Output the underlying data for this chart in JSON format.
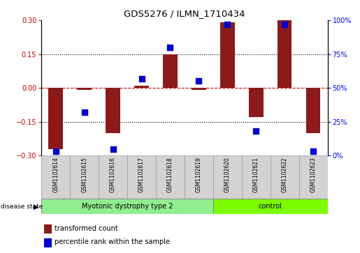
{
  "title": "GDS5276 / ILMN_1710434",
  "samples": [
    "GSM1102614",
    "GSM1102615",
    "GSM1102616",
    "GSM1102617",
    "GSM1102618",
    "GSM1102619",
    "GSM1102620",
    "GSM1102621",
    "GSM1102622",
    "GSM1102623"
  ],
  "transformed_count": [
    -0.27,
    -0.01,
    -0.2,
    0.01,
    0.15,
    -0.01,
    0.29,
    -0.13,
    0.3,
    -0.2
  ],
  "percentile_rank": [
    3,
    32,
    5,
    57,
    80,
    55,
    97,
    18,
    97,
    3
  ],
  "bar_color": "#8B1A1A",
  "dot_color": "#0000CC",
  "ylim_left": [
    -0.3,
    0.3
  ],
  "ylim_right": [
    0,
    100
  ],
  "yticks_left": [
    -0.3,
    -0.15,
    0,
    0.15,
    0.3
  ],
  "yticks_right": [
    0,
    25,
    50,
    75,
    100
  ],
  "hline_dotted": [
    -0.15,
    0.15
  ],
  "hline_dashed": [
    0
  ],
  "sample_box_color": "#D3D3D3",
  "myo_color": "#90EE90",
  "ctrl_color": "#7CFC00",
  "myo_count": 6,
  "ctrl_count": 4,
  "myo_label": "Myotonic dystrophy type 2",
  "ctrl_label": "control",
  "disease_state_label": "disease state",
  "legend_items": [
    "transformed count",
    "percentile rank within the sample"
  ],
  "bar_width": 0.5,
  "dot_size": 30
}
